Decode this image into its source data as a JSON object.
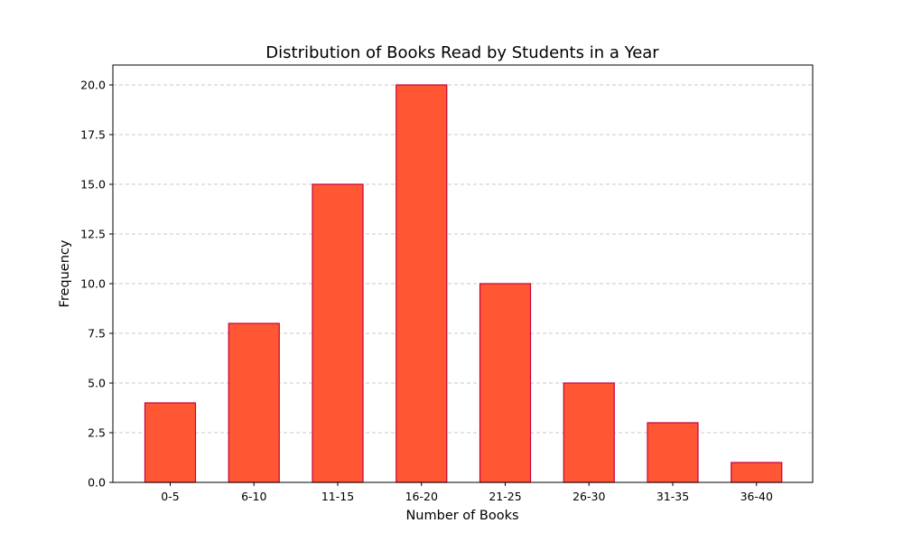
{
  "chart_data": {
    "type": "bar",
    "title": "Distribution of Books Read by Students in a Year",
    "xlabel": "Number of Books",
    "ylabel": "Frequency",
    "categories": [
      "0-5",
      "6-10",
      "11-15",
      "16-20",
      "21-25",
      "26-30",
      "31-35",
      "36-40"
    ],
    "values": [
      4,
      8,
      15,
      20,
      10,
      5,
      3,
      1
    ],
    "ylim": [
      0,
      21
    ],
    "yticks": [
      "0.0",
      "2.5",
      "5.0",
      "7.5",
      "10.0",
      "12.5",
      "15.0",
      "17.5",
      "20.0"
    ],
    "grid": "horizontal dashed",
    "colors": {
      "bar_fill": "#ff5733",
      "bar_edge": "#c70039",
      "grid": "#c8c8c8",
      "axis": "#000000"
    }
  }
}
